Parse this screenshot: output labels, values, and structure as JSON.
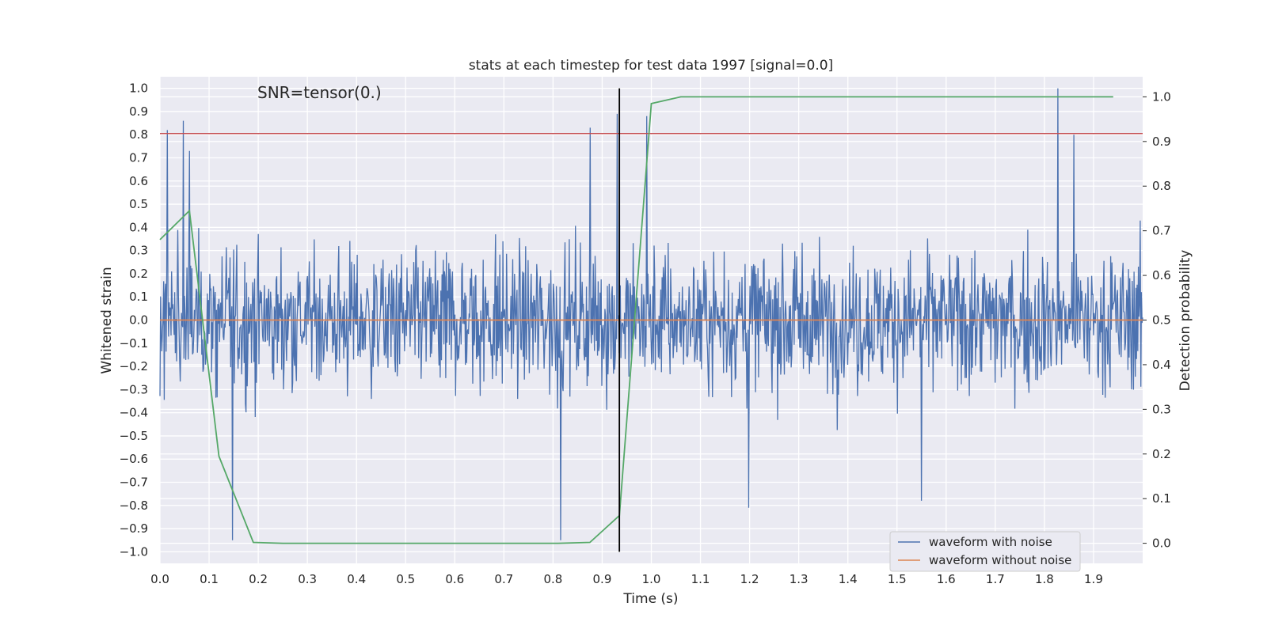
{
  "chart_data": {
    "type": "line",
    "title": "stats at each timestep for test data 1997 [signal=0.0]",
    "annotation": "SNR=tensor(0.)",
    "xlabel": "Time (s)",
    "ylabel": "Whitened strain",
    "ylabel_right": "Detection probability",
    "xlim": [
      0.0,
      2.0
    ],
    "ylim": [
      -1.05,
      1.05
    ],
    "ylim_right": [
      -0.045,
      1.045
    ],
    "x_ticks": [
      "0.0",
      "0.1",
      "0.2",
      "0.3",
      "0.4",
      "0.5",
      "0.6",
      "0.7",
      "0.8",
      "0.9",
      "1.0",
      "1.1",
      "1.2",
      "1.3",
      "1.4",
      "1.5",
      "1.6",
      "1.7",
      "1.8",
      "1.9"
    ],
    "y_ticks": [
      "1.0",
      "0.9",
      "0.8",
      "0.7",
      "0.6",
      "0.5",
      "0.4",
      "0.3",
      "0.2",
      "0.1",
      "0.0",
      "−0.1",
      "−0.2",
      "−0.3",
      "−0.4",
      "−0.5",
      "−0.6",
      "−0.7",
      "−0.8",
      "−0.9",
      "−1.0"
    ],
    "y_ticks_right": [
      "1.0",
      "0.9",
      "0.8",
      "0.7",
      "0.6",
      "0.5",
      "0.4",
      "0.3",
      "0.2",
      "0.1",
      "0.0"
    ],
    "grid": true,
    "legend_placement": "lower-right",
    "threshold_y": 0.805,
    "marker_x": 0.935,
    "marker_y_range": [
      -1.0,
      1.0
    ],
    "series": [
      {
        "name": "waveform with noise",
        "color": "#4c72b0",
        "axis": "left",
        "description": "noise",
        "x_range": [
          0.0,
          2.0
        ],
        "samples": 1600,
        "peaks": [
          {
            "x": 0.015,
            "y": 0.82
          },
          {
            "x": 0.048,
            "y": 0.86
          },
          {
            "x": 0.06,
            "y": 0.73
          },
          {
            "x": 0.148,
            "y": -0.95
          },
          {
            "x": 0.815,
            "y": -0.95
          },
          {
            "x": 0.875,
            "y": 0.83
          },
          {
            "x": 0.93,
            "y": 0.89
          },
          {
            "x": 0.99,
            "y": 0.88
          },
          {
            "x": 1.198,
            "y": -0.81
          },
          {
            "x": 1.828,
            "y": 1.0
          },
          {
            "x": 1.86,
            "y": 0.8
          },
          {
            "x": 1.55,
            "y": -0.78
          }
        ]
      },
      {
        "name": "waveform without noise",
        "color": "#dd8452",
        "axis": "left",
        "x": [
          0.0,
          2.0
        ],
        "y": [
          0.0,
          0.0
        ]
      },
      {
        "name": "",
        "color": "#55a868",
        "axis": "right",
        "x": [
          0.0,
          0.06,
          0.12,
          0.19,
          0.25,
          0.31,
          0.375,
          0.44,
          0.5,
          0.56,
          0.625,
          0.69,
          0.75,
          0.81,
          0.875,
          0.935,
          1.0,
          1.06,
          1.125,
          1.19,
          1.25,
          1.31,
          1.375,
          1.44,
          1.5,
          1.56,
          1.625,
          1.69,
          1.75,
          1.81,
          1.875,
          1.94
        ],
        "y": [
          0.68,
          0.745,
          0.195,
          0.002,
          0.0,
          0.0,
          0.0,
          0.0,
          0.0,
          0.0,
          0.0,
          0.0,
          0.0,
          0.0,
          0.002,
          0.062,
          0.985,
          1.0,
          1.0,
          1.0,
          1.0,
          1.0,
          1.0,
          1.0,
          1.0,
          1.0,
          1.0,
          1.0,
          1.0,
          1.0,
          1.0,
          1.0
        ]
      }
    ],
    "threshold_color": "#c44e52",
    "marker_color": "#000000"
  }
}
